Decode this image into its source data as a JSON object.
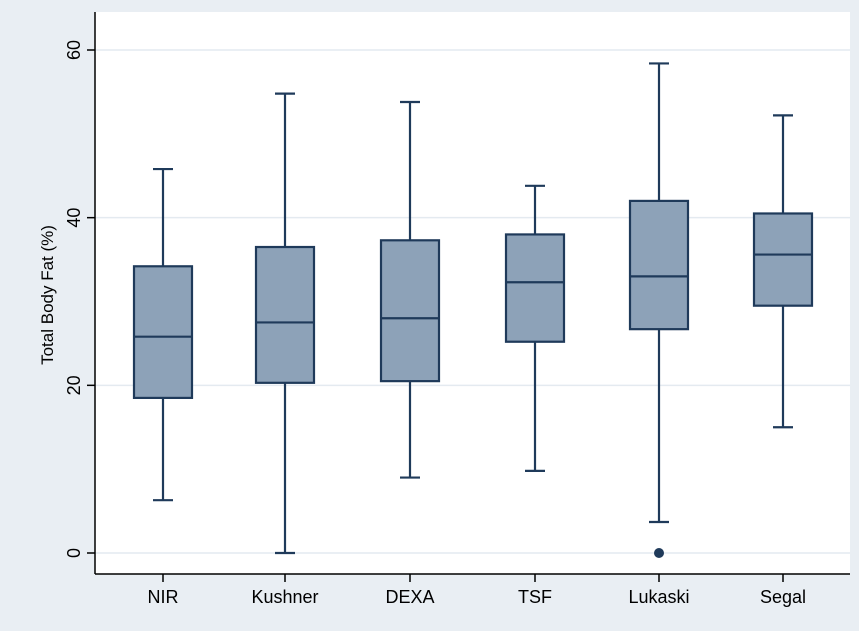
{
  "chart_data": {
    "type": "boxplot",
    "title": "",
    "xlabel": "",
    "ylabel": "Total Body Fat (%)",
    "ylim": [
      0,
      60
    ],
    "yticks": [
      0,
      20,
      40,
      60
    ],
    "grid": "horizontal",
    "legend": "none",
    "categories": [
      "NIR",
      "Kushner",
      "DEXA",
      "TSF",
      "Lukaski",
      "Segal"
    ],
    "boxes": [
      {
        "label": "NIR",
        "whisker_low": 6.3,
        "q1": 18.5,
        "median": 25.8,
        "q3": 34.2,
        "whisker_high": 45.8,
        "outliers": []
      },
      {
        "label": "Kushner",
        "whisker_low": 0.0,
        "q1": 20.3,
        "median": 27.5,
        "q3": 36.5,
        "whisker_high": 54.8,
        "outliers": []
      },
      {
        "label": "DEXA",
        "whisker_low": 9.0,
        "q1": 20.5,
        "median": 28.0,
        "q3": 37.3,
        "whisker_high": 53.8,
        "outliers": []
      },
      {
        "label": "TSF",
        "whisker_low": 9.8,
        "q1": 25.2,
        "median": 32.3,
        "q3": 38.0,
        "whisker_high": 43.8,
        "outliers": []
      },
      {
        "label": "Lukaski",
        "whisker_low": 3.7,
        "q1": 26.7,
        "median": 33.0,
        "q3": 42.0,
        "whisker_high": 58.4,
        "outliers": [
          0.0
        ]
      },
      {
        "label": "Segal",
        "whisker_low": 15.0,
        "q1": 29.5,
        "median": 35.6,
        "q3": 40.5,
        "whisker_high": 52.2,
        "outliers": []
      }
    ]
  },
  "colors": {
    "outer_background": "#e9eef3",
    "plot_background": "#ffffff",
    "box_fill": "#8da2b8",
    "box_stroke": "#1f3a5a",
    "gridline": "#e4eaf0",
    "axis": "#000000"
  }
}
